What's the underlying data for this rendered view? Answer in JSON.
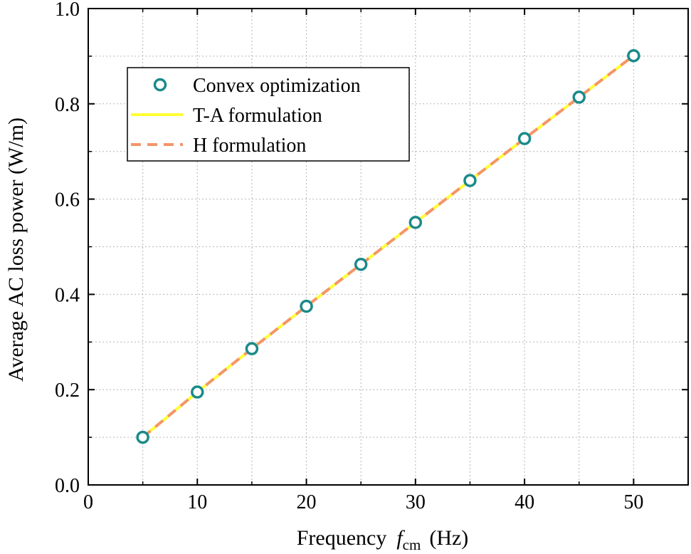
{
  "chart_data": {
    "type": "line",
    "xlabel": "Frequency",
    "xlabel_symbol": "f",
    "xlabel_subscript": "cm",
    "xlabel_unit": "(Hz)",
    "ylabel": "Average AC loss power (W/m)",
    "xlim": [
      0,
      55
    ],
    "ylim": [
      0,
      1.0
    ],
    "xticks": [
      0,
      10,
      20,
      30,
      40,
      50
    ],
    "yticks": [
      0.0,
      0.2,
      0.4,
      0.6,
      0.8,
      1.0
    ],
    "xtick_labels": [
      "0",
      "10",
      "20",
      "30",
      "40",
      "50"
    ],
    "ytick_labels": [
      "0.0",
      "0.2",
      "0.4",
      "0.6",
      "0.8",
      "1.0"
    ],
    "grid": true,
    "legend_position": "top-left",
    "x": [
      5,
      10,
      15,
      20,
      25,
      30,
      35,
      40,
      45,
      50
    ],
    "series": [
      {
        "name": "Convex optimization",
        "style": "markers",
        "color": "#1a8a8a",
        "values": [
          0.1,
          0.195,
          0.286,
          0.375,
          0.463,
          0.551,
          0.639,
          0.727,
          0.814,
          0.901
        ]
      },
      {
        "name": "T-A formulation",
        "style": "solid",
        "color": "#ffff33",
        "values": [
          0.1,
          0.195,
          0.286,
          0.375,
          0.463,
          0.551,
          0.639,
          0.727,
          0.814,
          0.901
        ]
      },
      {
        "name": "H formulation",
        "style": "dashed",
        "color": "#f4956a",
        "values": [
          0.1,
          0.195,
          0.286,
          0.375,
          0.463,
          0.551,
          0.639,
          0.727,
          0.814,
          0.901
        ]
      }
    ]
  }
}
